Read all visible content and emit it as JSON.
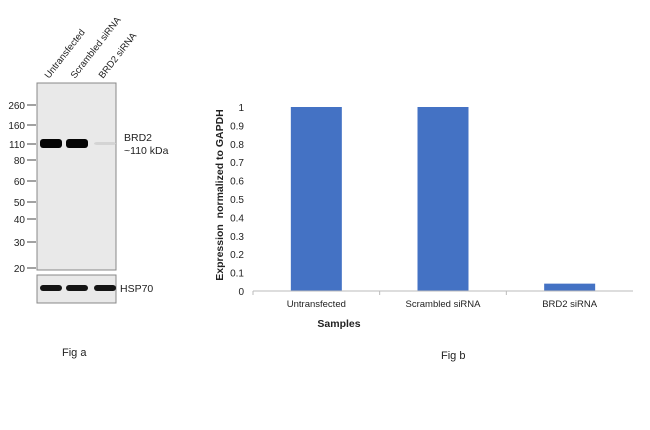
{
  "fig_a": {
    "caption": "Fig a",
    "lanes": [
      "Untransfected",
      "Scrambled siRNA",
      "BRD2 siRNA"
    ],
    "markers": [
      "260",
      "160",
      "110",
      "80",
      "60",
      "50",
      "40",
      "30",
      "20"
    ],
    "target_label": "BRD2",
    "target_size": "~110 kDa",
    "loading_control": "HSP70",
    "target_band_intensity": [
      1,
      1,
      0.08
    ],
    "control_band_intensity": [
      1,
      1,
      1
    ]
  },
  "fig_b": {
    "caption": "Fig b"
  },
  "chart_data": {
    "type": "bar",
    "title": "",
    "categories": [
      "Untransfected",
      "Scrambled siRNA",
      "BRD2 siRNA"
    ],
    "values": [
      1.0,
      1.0,
      0.04
    ],
    "xlabel": "Samples",
    "ylabel": "Expression  normalized to GAPDH",
    "ylim": [
      0,
      1
    ],
    "yticks": [
      "0",
      "0.1",
      "0.2",
      "0.3",
      "0.4",
      "0.5",
      "0.6",
      "0.7",
      "0.8",
      "0.9",
      "1"
    ],
    "grid": false,
    "bar_color": "#4472c4"
  }
}
